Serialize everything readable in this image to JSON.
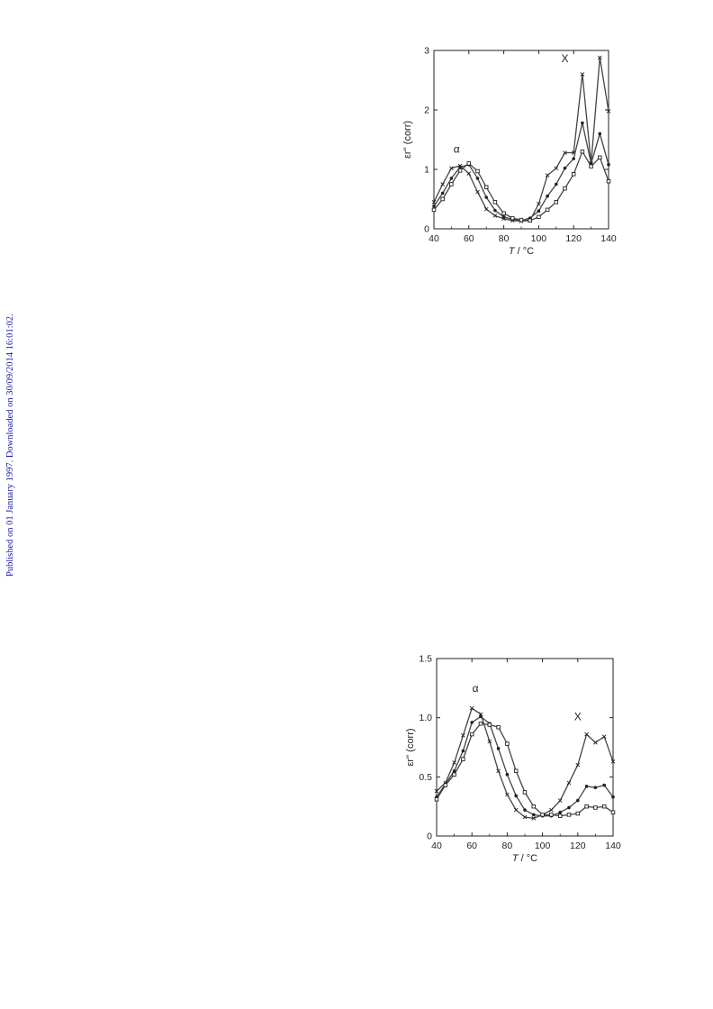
{
  "side_note": "Published on 01 January 1997. Downloaded on 30/09/2014 16:01:02.",
  "chart_data": [
    {
      "type": "line",
      "xlabel": "T / °C",
      "ylabel": "εr'' (corr)",
      "xlim": [
        40,
        140
      ],
      "ylim": [
        0,
        3
      ],
      "xticks": [
        "40",
        "60",
        "80",
        "100",
        "120",
        "140"
      ],
      "yticks": [
        "0",
        "1",
        "2",
        "3"
      ],
      "annotations": [
        {
          "text": "α",
          "x": 53,
          "y": 1.28
        },
        {
          "text": "X",
          "x": 115,
          "y": 2.8
        }
      ],
      "x": [
        40,
        45,
        50,
        55,
        60,
        65,
        70,
        75,
        80,
        85,
        90,
        95,
        100,
        105,
        110,
        115,
        120,
        125,
        130,
        135,
        140
      ],
      "series": [
        {
          "marker": "cross",
          "values": [
            0.45,
            0.75,
            1.02,
            1.06,
            0.93,
            0.62,
            0.33,
            0.22,
            0.17,
            0.14,
            0.13,
            0.14,
            0.42,
            0.9,
            1.02,
            1.28,
            1.28,
            2.6,
            1.1,
            2.88,
            1.98
          ]
        },
        {
          "marker": "filled",
          "values": [
            0.38,
            0.6,
            0.85,
            1.04,
            1.08,
            0.85,
            0.53,
            0.31,
            0.2,
            0.16,
            0.14,
            0.18,
            0.3,
            0.55,
            0.75,
            1.02,
            1.18,
            1.78,
            1.1,
            1.6,
            1.08
          ]
        },
        {
          "marker": "square",
          "values": [
            0.32,
            0.5,
            0.75,
            0.98,
            1.1,
            0.97,
            0.7,
            0.45,
            0.26,
            0.18,
            0.15,
            0.14,
            0.2,
            0.32,
            0.45,
            0.68,
            0.92,
            1.3,
            1.05,
            1.2,
            0.8
          ]
        }
      ]
    },
    {
      "type": "line",
      "xlabel": "T / °C",
      "ylabel": "εr'' (corr)",
      "xlim": [
        40,
        140
      ],
      "ylim": [
        0,
        1.5
      ],
      "xticks": [
        "40",
        "60",
        "80",
        "100",
        "120",
        "140"
      ],
      "yticks": [
        "0",
        "0.5",
        "1.0",
        "1.5"
      ],
      "annotations": [
        {
          "text": "α",
          "x": 62,
          "y": 1.22
        },
        {
          "text": "X",
          "x": 120,
          "y": 0.98
        }
      ],
      "x": [
        40,
        45,
        50,
        55,
        60,
        65,
        70,
        75,
        80,
        85,
        90,
        95,
        100,
        105,
        110,
        115,
        120,
        125,
        130,
        135,
        140
      ],
      "series": [
        {
          "marker": "cross",
          "values": [
            0.38,
            0.45,
            0.62,
            0.85,
            1.08,
            1.03,
            0.8,
            0.55,
            0.35,
            0.22,
            0.16,
            0.15,
            0.18,
            0.22,
            0.3,
            0.45,
            0.6,
            0.86,
            0.79,
            0.84,
            0.63
          ]
        },
        {
          "marker": "filled",
          "values": [
            0.33,
            0.44,
            0.55,
            0.72,
            0.96,
            1.01,
            0.95,
            0.74,
            0.52,
            0.34,
            0.22,
            0.18,
            0.17,
            0.17,
            0.2,
            0.24,
            0.3,
            0.42,
            0.41,
            0.43,
            0.33
          ]
        },
        {
          "marker": "square",
          "values": [
            0.31,
            0.43,
            0.52,
            0.65,
            0.86,
            0.95,
            0.94,
            0.92,
            0.78,
            0.55,
            0.37,
            0.25,
            0.18,
            0.18,
            0.17,
            0.18,
            0.19,
            0.25,
            0.24,
            0.25,
            0.2
          ]
        }
      ]
    }
  ]
}
